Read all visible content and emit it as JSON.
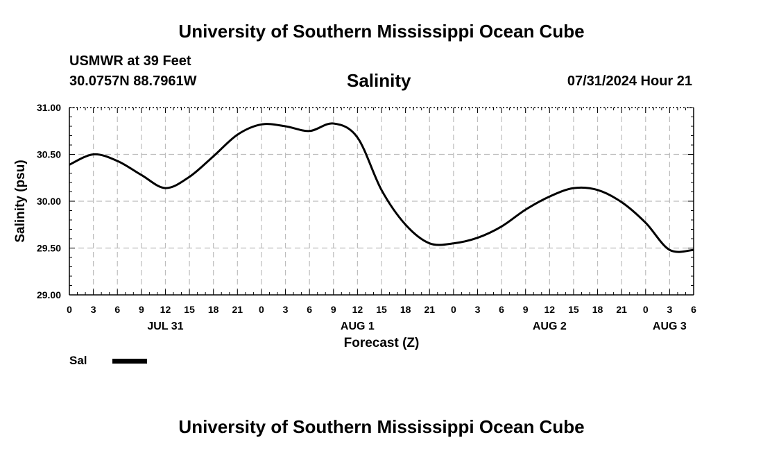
{
  "header": {
    "title_top": "University of Southern Mississippi Ocean Cube",
    "station": "USMWR at 39 Feet",
    "coordinates": "30.0757N  88.7961W",
    "parameter": "Salinity",
    "datetime": "07/31/2024 Hour 21",
    "title_bottom": "University of Southern Mississippi Ocean Cube"
  },
  "legend": {
    "label": "Sal",
    "color": "#000000"
  },
  "chart_data": {
    "type": "line",
    "title": "Salinity",
    "xlabel": "Forecast (Z)",
    "ylabel": "Salinity (psu)",
    "xlim": [
      0,
      78
    ],
    "ylim": [
      29.0,
      31.0
    ],
    "grid": true,
    "yticks": [
      "29.00",
      "29.50",
      "30.00",
      "30.50",
      "31.00"
    ],
    "ytick_values": [
      29.0,
      29.5,
      30.0,
      30.5,
      31.0
    ],
    "xtick_labels": [
      "0",
      "3",
      "6",
      "9",
      "12",
      "15",
      "18",
      "21",
      "0",
      "3",
      "6",
      "9",
      "12",
      "15",
      "18",
      "21",
      "0",
      "3",
      "6",
      "9",
      "12",
      "15",
      "18",
      "21",
      "0",
      "3",
      "6"
    ],
    "day_labels": [
      {
        "label": "JUL 31",
        "hour": 12
      },
      {
        "label": "AUG 1",
        "hour": 36
      },
      {
        "label": "AUG 2",
        "hour": 60
      },
      {
        "label": "AUG 3",
        "hour": 75
      }
    ],
    "series": [
      {
        "name": "Sal",
        "color": "#000000",
        "x": [
          0,
          3,
          6,
          9,
          12,
          15,
          18,
          21,
          24,
          27,
          30,
          33,
          36,
          39,
          42,
          45,
          48,
          51,
          54,
          57,
          60,
          63,
          66,
          69,
          72,
          75,
          78
        ],
        "values": [
          30.39,
          30.5,
          30.43,
          30.28,
          30.14,
          30.26,
          30.48,
          30.71,
          30.82,
          30.8,
          30.75,
          30.83,
          30.68,
          30.12,
          29.75,
          29.55,
          29.55,
          29.61,
          29.73,
          29.91,
          30.05,
          30.14,
          30.12,
          29.99,
          29.77,
          29.48,
          29.48
        ]
      }
    ]
  }
}
